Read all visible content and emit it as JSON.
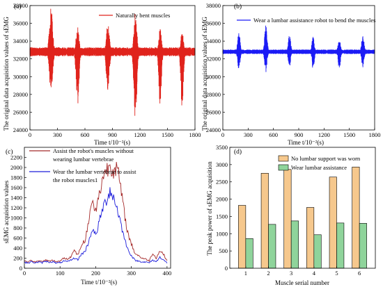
{
  "panels": [
    {
      "label": "(a)",
      "chart_data": {
        "type": "line",
        "xlabel": "Time t/10⁻²(s)",
        "ylabel": "The original data acquisition values of sEMG",
        "xlim": [
          0,
          1800
        ],
        "ylim": [
          24000,
          38000
        ],
        "xticks": [
          0,
          300,
          600,
          900,
          1200,
          1500,
          1800
        ],
        "yticks": [
          24000,
          26000,
          28000,
          30000,
          32000,
          34000,
          36000,
          38000
        ],
        "baseline": 32800,
        "noise": 500,
        "series": [
          {
            "name": "Naturally bent muscles",
            "color": "#e0231c"
          }
        ],
        "bursts": [
          {
            "center": 230,
            "width": 55,
            "max": 37800,
            "min": 28000
          },
          {
            "center": 520,
            "width": 50,
            "max": 35800,
            "min": 26600
          },
          {
            "center": 850,
            "width": 50,
            "max": 36000,
            "min": 27800
          },
          {
            "center": 1150,
            "width": 50,
            "max": 37200,
            "min": 25000
          },
          {
            "center": 1420,
            "width": 45,
            "max": 35600,
            "min": 26800
          },
          {
            "center": 1660,
            "width": 45,
            "max": 35300,
            "min": 26300
          }
        ]
      }
    },
    {
      "label": "(b)",
      "chart_data": {
        "type": "line",
        "xlabel": "Time t/10⁻²(s)",
        "ylabel": "The original data acquisition values of sEMG",
        "xlim": [
          0,
          1800
        ],
        "ylim": [
          24000,
          38000
        ],
        "xticks": [
          0,
          300,
          600,
          900,
          1200,
          1500,
          1800
        ],
        "yticks": [
          24000,
          26000,
          28000,
          30000,
          32000,
          34000,
          36000,
          38000
        ],
        "baseline": 32800,
        "noise": 250,
        "series": [
          {
            "name": "Wear a lumbar assistance robot to bend the muscles",
            "color": "#1b1bf5"
          }
        ],
        "bursts": [
          {
            "center": 190,
            "width": 45,
            "max": 35100,
            "min": 30800
          },
          {
            "center": 510,
            "width": 45,
            "max": 35900,
            "min": 30500
          },
          {
            "center": 790,
            "width": 45,
            "max": 34800,
            "min": 30900
          },
          {
            "center": 1070,
            "width": 45,
            "max": 34500,
            "min": 30800
          },
          {
            "center": 1380,
            "width": 45,
            "max": 34300,
            "min": 30800
          },
          {
            "center": 1660,
            "width": 45,
            "max": 34800,
            "min": 31000
          }
        ]
      }
    },
    {
      "label": "(c)",
      "chart_data": {
        "type": "line",
        "xlabel": "Time t/10⁻²(s)",
        "ylabel": "sEMG acquisition values",
        "xlim": [
          0,
          410
        ],
        "ylim": [
          0,
          2400
        ],
        "xticks": [
          0,
          100,
          200,
          300,
          400
        ],
        "yticks": [
          0,
          200,
          400,
          600,
          800,
          1000,
          1200,
          1400,
          1600,
          1800,
          2000,
          2200
        ],
        "series": [
          {
            "name": "Assist the robot's muscles without wearing lumbar vertebrae",
            "legend_lines": [
              "Assist the robot's muscles without",
              "wearing lumbar vertebrae"
            ],
            "color": "#a52a2a",
            "x": [
              0,
              10,
              20,
              30,
              40,
              50,
              60,
              70,
              80,
              90,
              100,
              110,
              120,
              130,
              140,
              150,
              160,
              170,
              180,
              190,
              200,
              210,
              220,
              230,
              240,
              250,
              260,
              270,
              280,
              290,
              300,
              310,
              320,
              330,
              340,
              350,
              360,
              370,
              380,
              390,
              400
            ],
            "y": [
              140,
              110,
              160,
              120,
              150,
              130,
              170,
              140,
              160,
              120,
              150,
              200,
              180,
              230,
              360,
              260,
              460,
              560,
              900,
              1350,
              1150,
              1450,
              1820,
              1950,
              2050,
              1950,
              2000,
              1600,
              1100,
              700,
              480,
              300,
              250,
              200,
              180,
              150,
              300,
              200,
              350,
              280,
              150
            ]
          },
          {
            "name": "Wear the lumbar vertebrae to assist the robot muscles1",
            "legend_lines": [
              "Wear the lumbar vertebrae to assist",
              "the robot muscles1"
            ],
            "color": "#1d1ddb",
            "x": [
              0,
              10,
              20,
              30,
              40,
              50,
              60,
              70,
              80,
              90,
              100,
              110,
              120,
              130,
              140,
              150,
              160,
              170,
              180,
              190,
              200,
              210,
              220,
              230,
              240,
              250,
              260,
              270,
              280,
              290,
              300,
              310,
              320,
              330,
              340,
              350,
              360,
              370,
              380,
              390,
              400
            ],
            "y": [
              120,
              100,
              130,
              110,
              120,
              110,
              140,
              120,
              130,
              100,
              110,
              140,
              130,
              160,
              200,
              170,
              280,
              330,
              520,
              780,
              650,
              920,
              1200,
              1350,
              1550,
              1400,
              1200,
              900,
              600,
              380,
              250,
              160,
              140,
              130,
              120,
              110,
              160,
              130,
              220,
              170,
              100
            ]
          }
        ]
      }
    },
    {
      "label": "(d)",
      "chart_data": {
        "type": "bar",
        "xlabel": "Muscle serial number",
        "ylabel": "The peak power of sEMG acquisition",
        "ylim": [
          0,
          3500
        ],
        "yticks": [
          0,
          500,
          1000,
          1500,
          2000,
          2500,
          3000,
          3500
        ],
        "categories": [
          "1",
          "2",
          "3",
          "4",
          "5",
          "6"
        ],
        "series": [
          {
            "name": "No lumbar support was worn",
            "color": "#f6c88d",
            "values": [
              1820,
              2750,
              2860,
              1760,
              2640,
              2930
            ]
          },
          {
            "name": "Wear lumbar assistance",
            "color": "#8fd49b",
            "values": [
              860,
              1270,
              1370,
              970,
              1310,
              1300
            ]
          }
        ]
      }
    }
  ]
}
